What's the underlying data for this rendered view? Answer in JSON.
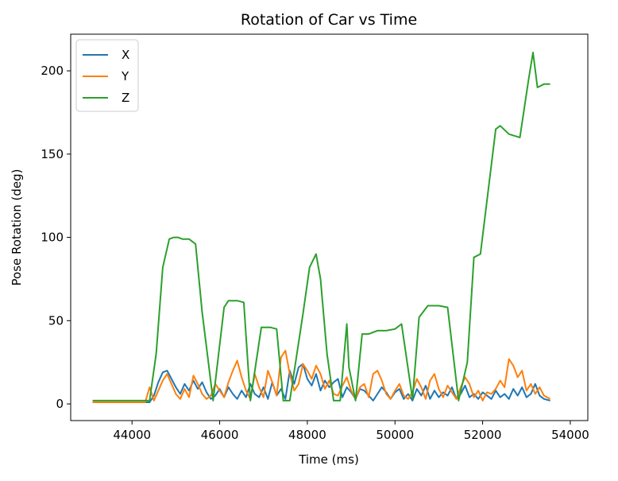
{
  "chart_data": {
    "type": "line",
    "title": "Rotation of Car vs Time",
    "xlabel": "Time (ms)",
    "ylabel": "Pose Rotation (deg)",
    "xlim": [
      42600,
      54400
    ],
    "ylim": [
      -10,
      222
    ],
    "xticks": [
      44000,
      46000,
      48000,
      50000,
      52000,
      54000
    ],
    "yticks": [
      0,
      50,
      100,
      150,
      200
    ],
    "legend_position": "upper-left",
    "grid": false,
    "series": [
      {
        "name": "X",
        "color": "#1f77b4",
        "x": [
          43100,
          43600,
          44000,
          44400,
          44500,
          44600,
          44700,
          44800,
          44900,
          45000,
          45100,
          45200,
          45300,
          45400,
          45500,
          45600,
          45700,
          45800,
          45900,
          46000,
          46100,
          46200,
          46300,
          46400,
          46500,
          46600,
          46700,
          46800,
          46900,
          47000,
          47100,
          47200,
          47300,
          47400,
          47500,
          47600,
          47700,
          47800,
          47900,
          48000,
          48100,
          48200,
          48300,
          48400,
          48500,
          48600,
          48700,
          48800,
          48900,
          49000,
          49100,
          49200,
          49300,
          49400,
          49500,
          49600,
          49700,
          49800,
          49900,
          50000,
          50100,
          50200,
          50300,
          50400,
          50500,
          50600,
          50700,
          50800,
          50900,
          51000,
          51100,
          51200,
          51300,
          51400,
          51500,
          51600,
          51700,
          51800,
          51900,
          52000,
          52100,
          52200,
          52300,
          52400,
          52500,
          52600,
          52700,
          52800,
          52900,
          53000,
          53100,
          53200,
          53300,
          53400,
          53540
        ],
        "y": [
          1,
          1,
          1,
          1,
          5,
          13,
          19,
          20,
          15,
          10,
          6,
          12,
          8,
          14,
          9,
          13,
          7,
          3,
          5,
          9,
          4,
          10,
          6,
          3,
          8,
          4,
          12,
          6,
          4,
          10,
          3,
          13,
          5,
          9,
          3,
          20,
          12,
          22,
          24,
          15,
          11,
          18,
          8,
          14,
          10,
          13,
          15,
          4,
          10,
          7,
          3,
          9,
          8,
          5,
          2,
          6,
          10,
          7,
          3,
          7,
          9,
          3,
          6,
          2,
          9,
          5,
          11,
          3,
          8,
          4,
          7,
          5,
          10,
          3,
          6,
          11,
          4,
          6,
          3,
          7,
          5,
          3,
          8,
          4,
          6,
          3,
          9,
          5,
          10,
          4,
          6,
          12,
          5,
          3,
          2
        ]
      },
      {
        "name": "Y",
        "color": "#ff7f0e",
        "x": [
          43100,
          43600,
          44000,
          44300,
          44400,
          44500,
          44600,
          44700,
          44800,
          44900,
          45000,
          45100,
          45200,
          45300,
          45400,
          45500,
          45600,
          45700,
          45800,
          45900,
          46000,
          46100,
          46200,
          46300,
          46400,
          46500,
          46600,
          46700,
          46800,
          46900,
          47000,
          47100,
          47200,
          47300,
          47400,
          47500,
          47600,
          47700,
          47800,
          47900,
          48000,
          48100,
          48200,
          48300,
          48400,
          48500,
          48600,
          48700,
          48800,
          48900,
          49000,
          49100,
          49200,
          49300,
          49400,
          49500,
          49600,
          49700,
          49800,
          49900,
          50000,
          50100,
          50200,
          50300,
          50400,
          50500,
          50600,
          50700,
          50800,
          50900,
          51000,
          51100,
          51200,
          51300,
          51400,
          51500,
          51600,
          51700,
          51800,
          51900,
          52000,
          52100,
          52200,
          52300,
          52400,
          52500,
          52600,
          52700,
          52800,
          52900,
          53000,
          53100,
          53200,
          53300,
          53400,
          53540
        ],
        "y": [
          1,
          1,
          1,
          1,
          10,
          2,
          8,
          14,
          18,
          12,
          6,
          3,
          9,
          4,
          17,
          12,
          6,
          3,
          5,
          12,
          8,
          4,
          13,
          20,
          26,
          16,
          8,
          3,
          18,
          10,
          4,
          20,
          13,
          5,
          28,
          32,
          18,
          8,
          12,
          24,
          20,
          15,
          23,
          18,
          9,
          14,
          6,
          5,
          11,
          16,
          8,
          3,
          10,
          12,
          4,
          18,
          20,
          14,
          6,
          3,
          8,
          12,
          5,
          3,
          7,
          15,
          10,
          3,
          14,
          18,
          9,
          4,
          11,
          7,
          3,
          10,
          16,
          12,
          4,
          8,
          2,
          7,
          6,
          9,
          14,
          10,
          27,
          23,
          16,
          20,
          8,
          12,
          6,
          10,
          5,
          3
        ]
      },
      {
        "name": "Z",
        "color": "#2ca02c",
        "x": [
          43100,
          44400,
          44550,
          44700,
          44850,
          44950,
          45050,
          45150,
          45300,
          45450,
          45600,
          45850,
          46100,
          46200,
          46400,
          46550,
          46700,
          46950,
          47150,
          47300,
          47450,
          47600,
          47750,
          47900,
          48050,
          48200,
          48300,
          48450,
          48600,
          48750,
          48900,
          48950,
          49100,
          49250,
          49400,
          49600,
          49800,
          50000,
          50150,
          50400,
          50550,
          50750,
          51000,
          51200,
          51450,
          51650,
          51800,
          51950,
          52300,
          52400,
          52600,
          52850,
          53050,
          53150,
          53250,
          53400,
          53540
        ],
        "y": [
          2,
          2,
          30,
          82,
          99,
          100,
          100,
          99,
          99,
          96,
          55,
          2,
          58,
          62,
          62,
          61,
          2,
          46,
          46,
          45,
          2,
          2,
          28,
          54,
          82,
          90,
          75,
          30,
          2,
          2,
          48,
          22,
          2,
          42,
          42,
          44,
          44,
          45,
          48,
          3,
          52,
          59,
          59,
          58,
          2,
          25,
          88,
          90,
          165,
          167,
          162,
          160,
          195,
          211,
          190,
          192,
          192
        ]
      }
    ]
  }
}
